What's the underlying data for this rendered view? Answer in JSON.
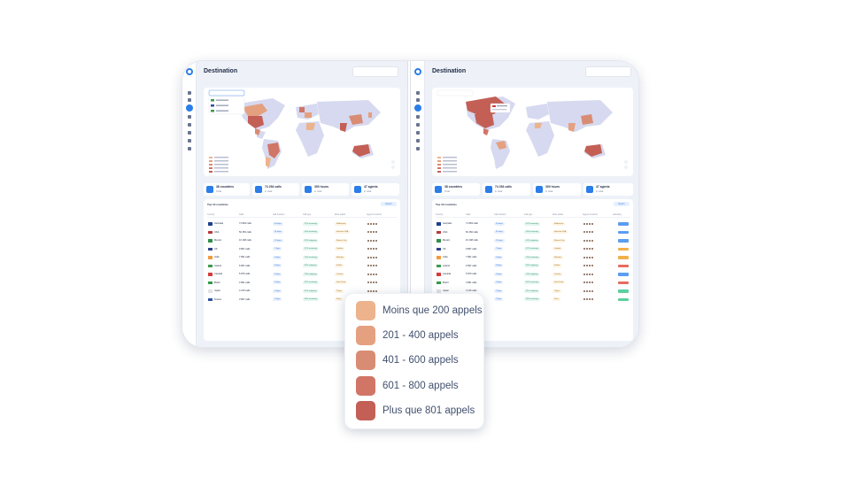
{
  "legend": {
    "items": [
      {
        "label": "Moins que 200 appels",
        "color": "#ecb38d"
      },
      {
        "label": "201 - 400 appels",
        "color": "#e5a080"
      },
      {
        "label": "401 - 600 appels",
        "color": "#d98c74"
      },
      {
        "label": "601 - 800 appels",
        "color": "#d17566"
      },
      {
        "label": "Plus que 801 appels",
        "color": "#c35f55"
      }
    ]
  },
  "panels": [
    {
      "title": "Destination",
      "stats": [
        {
          "value": "38 countries",
          "label": "Total",
          "icon": "globe-icon"
        },
        {
          "value": "74 254 calls",
          "label": "in total",
          "icon": "phone-icon"
        },
        {
          "value": "300 hours",
          "label": "in total",
          "icon": "clock-icon"
        },
        {
          "value": "47 agents",
          "label": "in total",
          "icon": "user-icon"
        }
      ],
      "table_title": "Top 10 countries",
      "export_label": "Export",
      "columns": [
        "Country",
        "Calls",
        "Call duration",
        "Call type",
        "Most called",
        "Agents involved"
      ]
    },
    {
      "title": "Destination",
      "stats": [
        {
          "value": "38 countries",
          "label": "Total",
          "icon": "globe-icon"
        },
        {
          "value": "74 254 calls",
          "label": "in total",
          "icon": "phone-icon"
        },
        {
          "value": "300 hours",
          "label": "in total",
          "icon": "clock-icon"
        },
        {
          "value": "47 agents",
          "label": "in total",
          "icon": "user-icon"
        }
      ],
      "table_title": "Top 10 countries",
      "export_label": "Export",
      "columns": [
        "Country",
        "Calls",
        "Call duration",
        "Call type",
        "Most called",
        "Agents involved",
        "Labelling"
      ]
    }
  ],
  "rows": [
    {
      "country": "Australia",
      "flag": "#1d3f8f",
      "calls": "71 894 calls",
      "duration": "62 days",
      "type": "57% incoming",
      "most": "Melbourne",
      "tag": "#5b9df0"
    },
    {
      "country": "USA",
      "flag": "#b7363c",
      "calls": "50 450 calls",
      "duration": "31 days",
      "type": "50% incoming",
      "most": "Houston USA",
      "tag": "#5b9df0"
    },
    {
      "country": "Mexico",
      "flag": "#2f8f4a",
      "calls": "10 198 calls",
      "duration": "12 days",
      "type": "52% outgoing",
      "most": "Mexico City",
      "tag": "#5b9df0"
    },
    {
      "country": "UK",
      "flag": "#2b3f8f",
      "calls": "9 897 calls",
      "duration": "7 days",
      "type": "57% incoming",
      "most": "London",
      "tag": "#f1b04a"
    },
    {
      "country": "India",
      "flag": "#f39a3c",
      "calls": "7 891 calls",
      "duration": "4 days",
      "type": "76% incoming",
      "most": "Mumbai",
      "tag": "#f1b04a"
    },
    {
      "country": "Ireland",
      "flag": "#3a9a4f",
      "calls": "6 897 calls",
      "duration": "8 days",
      "type": "92% outgoing",
      "most": "Dublin",
      "tag": "#e66c5e"
    },
    {
      "country": "Canada",
      "flag": "#d33b3b",
      "calls": "5 879 calls",
      "duration": "5 days",
      "type": "79% outgoing",
      "most": "Toronto",
      "tag": "#5b9df0"
    },
    {
      "country": "Brazil",
      "flag": "#2f9a47",
      "calls": "4 891 calls",
      "duration": "3 days",
      "type": "87% incoming",
      "most": "Sao Paulo",
      "tag": "#e66c5e"
    },
    {
      "country": "Japan",
      "flag": "#e2e2e2",
      "calls": "4 216 calls",
      "duration": "2 days",
      "type": "61% outgoing",
      "most": "Tokyo",
      "tag": "#5bd0a0"
    },
    {
      "country": "France",
      "flag": "#2e4fa0",
      "calls": "3 897 calls",
      "duration": "2 days",
      "type": "56% incoming",
      "most": "Paris",
      "tag": "#5bd0a0"
    }
  ]
}
